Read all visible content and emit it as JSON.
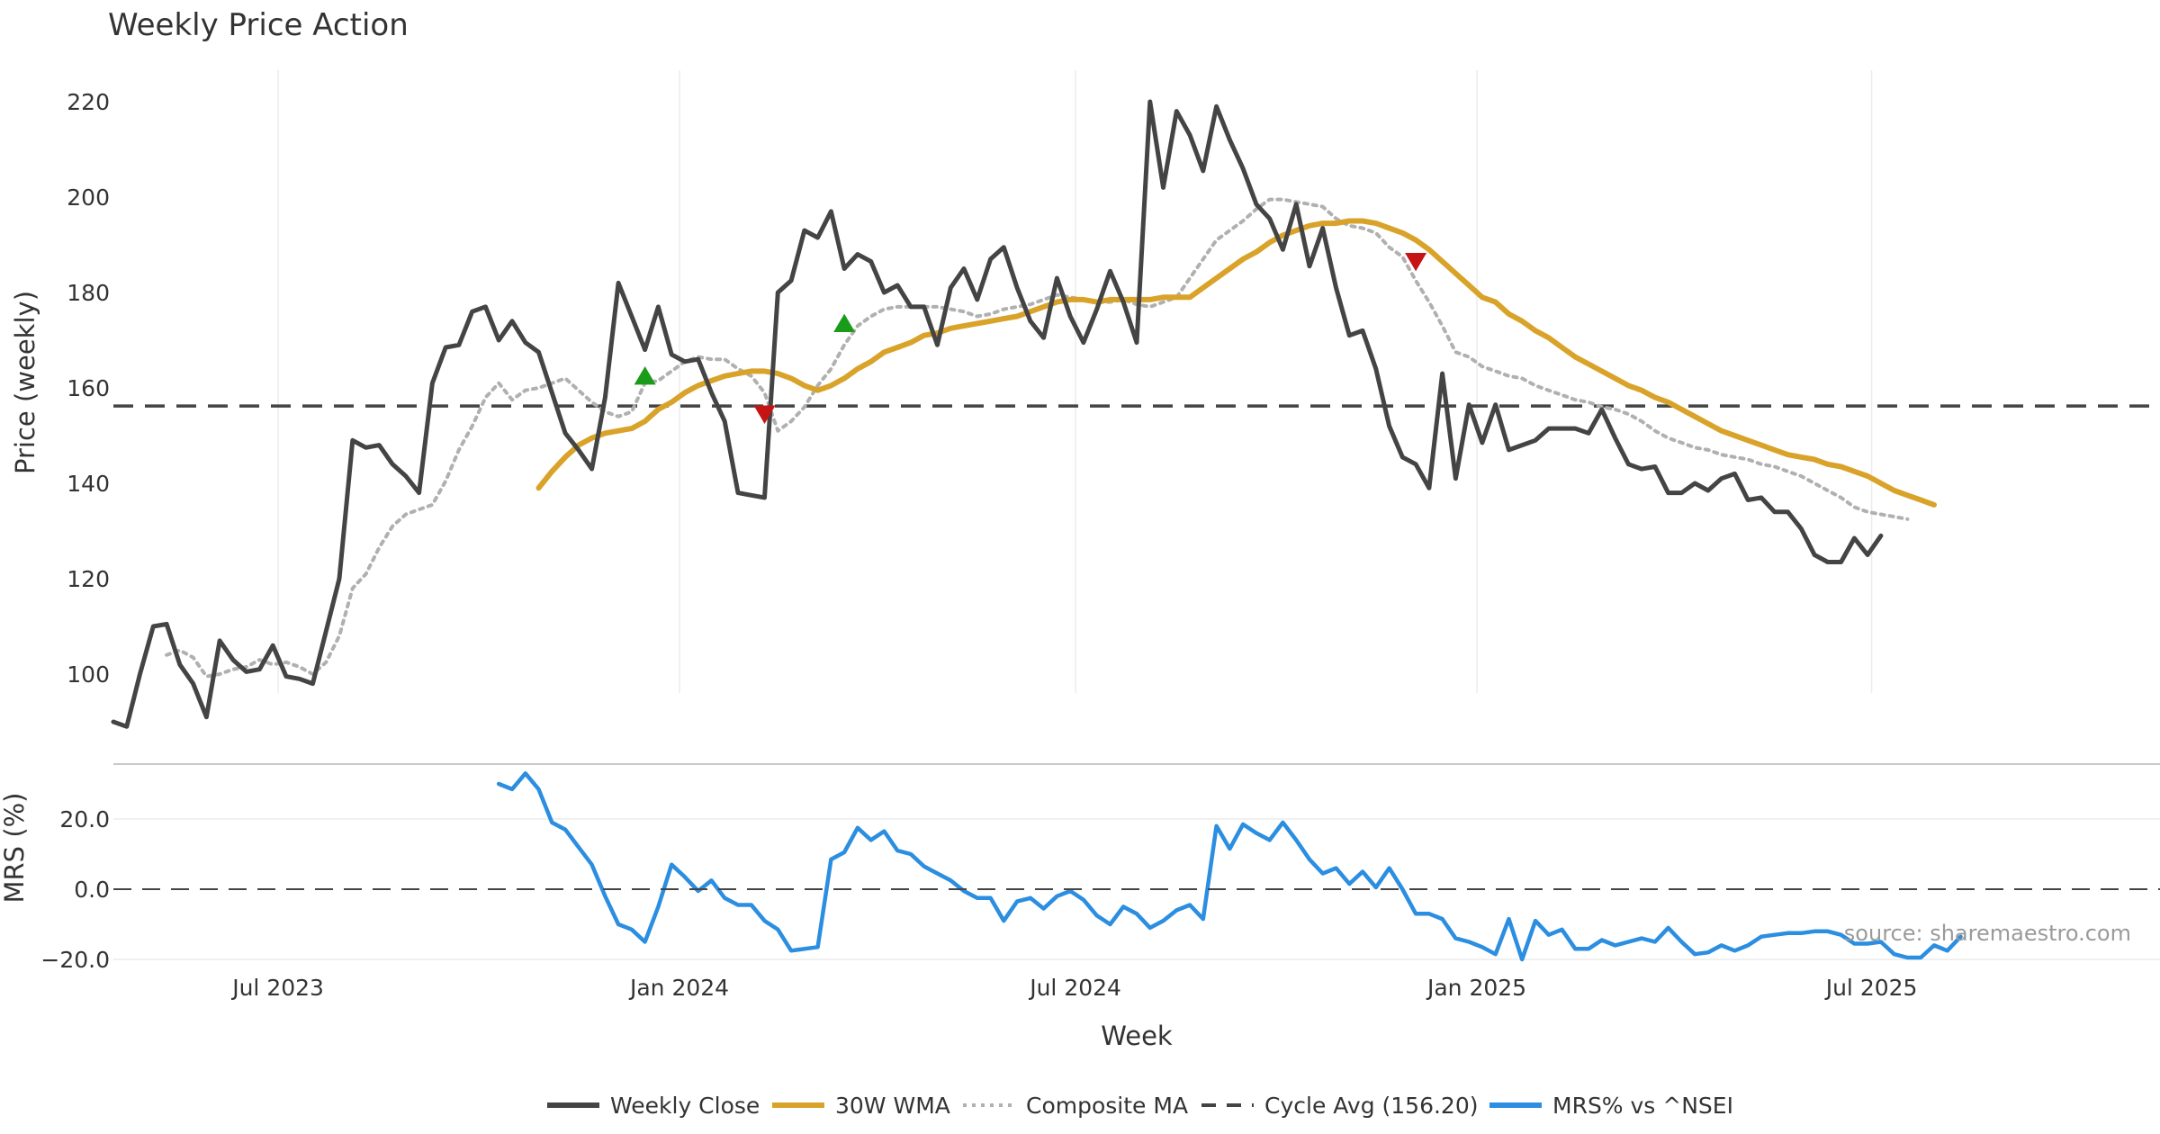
{
  "chart_data": [
    {
      "type": "line",
      "title": "Weekly Price Action",
      "ylabel": "Price (weekly)",
      "xlabel": "Week",
      "ylim": [
        86,
        226
      ],
      "yticks": [
        100,
        120,
        140,
        160,
        180,
        200,
        220
      ],
      "x_range_weeks": [
        0,
        154
      ],
      "xticks": [
        {
          "label": "Jul 2023",
          "week": 12.4
        },
        {
          "label": "Jan 2024",
          "week": 42.6
        },
        {
          "label": "Jul 2024",
          "week": 72.4
        },
        {
          "label": "Jan 2025",
          "week": 102.6
        },
        {
          "label": "Jul 2025",
          "week": 132.3
        }
      ],
      "grid": true,
      "series": [
        {
          "name": "Weekly Close",
          "color": "#444444",
          "start_week": 0,
          "values": [
            90,
            89,
            100,
            110,
            110.5,
            102,
            98,
            91,
            107,
            103,
            100.5,
            101,
            106,
            99.5,
            99,
            98,
            109,
            120,
            149,
            147.5,
            148,
            144,
            141.5,
            138,
            161,
            168.5,
            169,
            176,
            177,
            170,
            174,
            169.5,
            167.5,
            159,
            150.5,
            147,
            143,
            158,
            182,
            175,
            168,
            177,
            167,
            165.5,
            166,
            159,
            153,
            138,
            137.5,
            137,
            180,
            182.5,
            193,
            191.5,
            197,
            185,
            188,
            186.5,
            180,
            181.5,
            177,
            177,
            169,
            181,
            185,
            178.5,
            187,
            189.5,
            181,
            174,
            170.5,
            183,
            175,
            169.5,
            176.5,
            184.5,
            178,
            169.5,
            220,
            202,
            218,
            213,
            205.5,
            219,
            212,
            206,
            198.5,
            195.5,
            189,
            198.5,
            185.5,
            193.5,
            181,
            171,
            172,
            164,
            152,
            145.5,
            144,
            139,
            163,
            141,
            156.5,
            148.5,
            156.5,
            147,
            148,
            149,
            151.5,
            151.5,
            151.5,
            150.5,
            155.5,
            149.5,
            144,
            143,
            143.5,
            138,
            138,
            140,
            138.5,
            141,
            142,
            136.5,
            137,
            134,
            134,
            130.5,
            125,
            123.5,
            123.5,
            128.5,
            125,
            129
          ]
        },
        {
          "name": "30W WMA",
          "color": "#d9a32a",
          "start_week": 32,
          "values": [
            139,
            142.5,
            145.5,
            148,
            149.5,
            150.5,
            151,
            151.5,
            153,
            155.5,
            157,
            159,
            160.5,
            161.5,
            162.5,
            163,
            163.5,
            163.5,
            163,
            162,
            160.5,
            159.5,
            160.5,
            162,
            164,
            165.5,
            167.5,
            168.5,
            169.5,
            171,
            171.5,
            172.5,
            173,
            173.5,
            174,
            174.5,
            175,
            176,
            177,
            178,
            178.5,
            178.5,
            178,
            178.5,
            178.5,
            178.5,
            178.5,
            179,
            179,
            179,
            181,
            183,
            185,
            187,
            188.5,
            190.5,
            192,
            193,
            194,
            194.5,
            194.5,
            195,
            195,
            194.5,
            193.5,
            192.5,
            191,
            189,
            186.5,
            184,
            181.5,
            179,
            178,
            175.5,
            174,
            172,
            170.5,
            168.5,
            166.5,
            165,
            163.5,
            162,
            160.5,
            159.5,
            158,
            157,
            155.5,
            154,
            152.5,
            151,
            150,
            149,
            148,
            147,
            146,
            145.5,
            145,
            144,
            143.5,
            142.5,
            141.5,
            140,
            138.5,
            137.5,
            136.5,
            135.5
          ]
        },
        {
          "name": "Composite MA",
          "color": "#b0b0b0",
          "start_week": 4,
          "values": [
            104,
            105,
            103.5,
            99.5,
            100,
            101,
            101.5,
            103,
            102,
            102.5,
            101.5,
            100,
            102.5,
            108,
            118,
            121,
            126.5,
            131,
            133.5,
            134.5,
            135.5,
            140.5,
            147,
            152,
            158,
            161,
            157.5,
            159.5,
            160,
            161,
            162,
            159.5,
            157,
            155,
            154,
            155,
            161,
            161.5,
            163.5,
            165.5,
            166.5,
            166,
            166,
            164,
            162.5,
            159,
            151,
            153,
            156,
            160.5,
            164,
            169,
            173,
            175,
            176.5,
            177,
            177,
            177,
            177,
            176.5,
            176,
            175,
            175.5,
            176.5,
            177,
            177.5,
            178.5,
            179.5,
            179,
            178.5,
            178,
            178,
            178.5,
            177.5,
            177,
            178,
            179,
            183,
            187,
            191,
            193,
            195,
            197.5,
            199.5,
            199.5,
            199,
            198.5,
            198,
            195.5,
            194,
            193.5,
            192.5,
            189.5,
            187.5,
            182.5,
            178,
            173,
            167.5,
            166.5,
            164.5,
            163.5,
            162.5,
            162,
            160.5,
            159.5,
            158.5,
            157.5,
            157,
            156,
            155.5,
            154.5,
            153,
            151,
            149.5,
            148.5,
            147.5,
            147,
            146,
            145.5,
            145,
            144,
            143.5,
            142.5,
            141.5,
            140,
            138.5,
            137,
            135,
            134,
            133.5,
            133,
            132.5
          ]
        },
        {
          "name": "Cycle Avg (156.20)",
          "color": "#444444",
          "constant": 156.2
        }
      ],
      "markers": [
        {
          "type": "buy",
          "week": 40,
          "value": 162.5,
          "color": "#1a9c1a"
        },
        {
          "type": "buy",
          "week": 55,
          "value": 173.5,
          "color": "#1a9c1a"
        },
        {
          "type": "sell",
          "week": 49,
          "value": 154.5,
          "color": "#c41414"
        },
        {
          "type": "sell",
          "week": 98,
          "value": 186.5,
          "color": "#c41414"
        }
      ]
    },
    {
      "type": "line",
      "ylabel": "MRS (%)",
      "xlabel": "Week",
      "ylim": [
        -22,
        35
      ],
      "yticks": [
        {
          "value": 20,
          "label": "20.0"
        },
        {
          "value": 0,
          "label": "0.0"
        },
        {
          "value": -20,
          "label": "−20.0"
        }
      ],
      "xticks": [
        {
          "label": "Jul 2023",
          "week": 12.4
        },
        {
          "label": "Jan 2024",
          "week": 42.6
        },
        {
          "label": "Jul 2024",
          "week": 72.4
        },
        {
          "label": "Jan 2025",
          "week": 102.6
        },
        {
          "label": "Jul 2025",
          "week": 132.3
        }
      ],
      "series": [
        {
          "name": "MRS% vs ^NSEI",
          "color": "#2b8ee0",
          "start_week": 29,
          "values": [
            30,
            28.5,
            33,
            28.5,
            19,
            17,
            12,
            7,
            -2,
            -10,
            -11.5,
            -15,
            -5,
            7,
            3.5,
            -0.5,
            2.5,
            -2.5,
            -4.5,
            -4.5,
            -9,
            -11.5,
            -17.5,
            -17,
            -16.5,
            8.5,
            10.5,
            17.5,
            14,
            16.5,
            11,
            10,
            6.5,
            4.5,
            2.5,
            -0.5,
            -2.5,
            -2.5,
            -9,
            -3.5,
            -2.5,
            -5.5,
            -2,
            -0.5,
            -3,
            -7.5,
            -10,
            -5,
            -7,
            -11,
            -9,
            -6,
            -4.5,
            -8.5,
            18,
            11.5,
            18.5,
            16,
            14,
            19,
            14,
            8.5,
            4.5,
            6,
            1.5,
            5,
            0.5,
            6,
            0,
            -7,
            -7,
            -8.5,
            -14,
            -15,
            -16.5,
            -18.5,
            -8.5,
            -20,
            -9,
            -13,
            -11.5,
            -17,
            -17,
            -14.5,
            -16,
            -15,
            -14,
            -15,
            -11,
            -15,
            -18.5,
            -18,
            -16,
            -17.5,
            -16,
            -13.5,
            -13,
            -12.5,
            -12.5,
            -12,
            -12,
            -13,
            -15.5,
            -15.5,
            -15,
            -18.5,
            -19.5,
            -19.5,
            -16,
            -17.5,
            -13.5
          ]
        },
        {
          "name": "Zero line",
          "color": "#444444",
          "constant": 0
        }
      ]
    }
  ],
  "legend": {
    "placement": "bottom-center",
    "items": [
      {
        "label": "Weekly Close",
        "color": "#444444",
        "style": "solid"
      },
      {
        "label": "30W WMA",
        "color": "#d9a32a",
        "style": "solid"
      },
      {
        "label": "Composite MA",
        "color": "#b0b0b0",
        "style": "dotted"
      },
      {
        "label": "Cycle Avg (156.20)",
        "color": "#444444",
        "style": "dashed"
      },
      {
        "label": "MRS% vs ^NSEI",
        "color": "#2b8ee0",
        "style": "solid"
      }
    ]
  },
  "source_text": "source: sharemaestro.com"
}
